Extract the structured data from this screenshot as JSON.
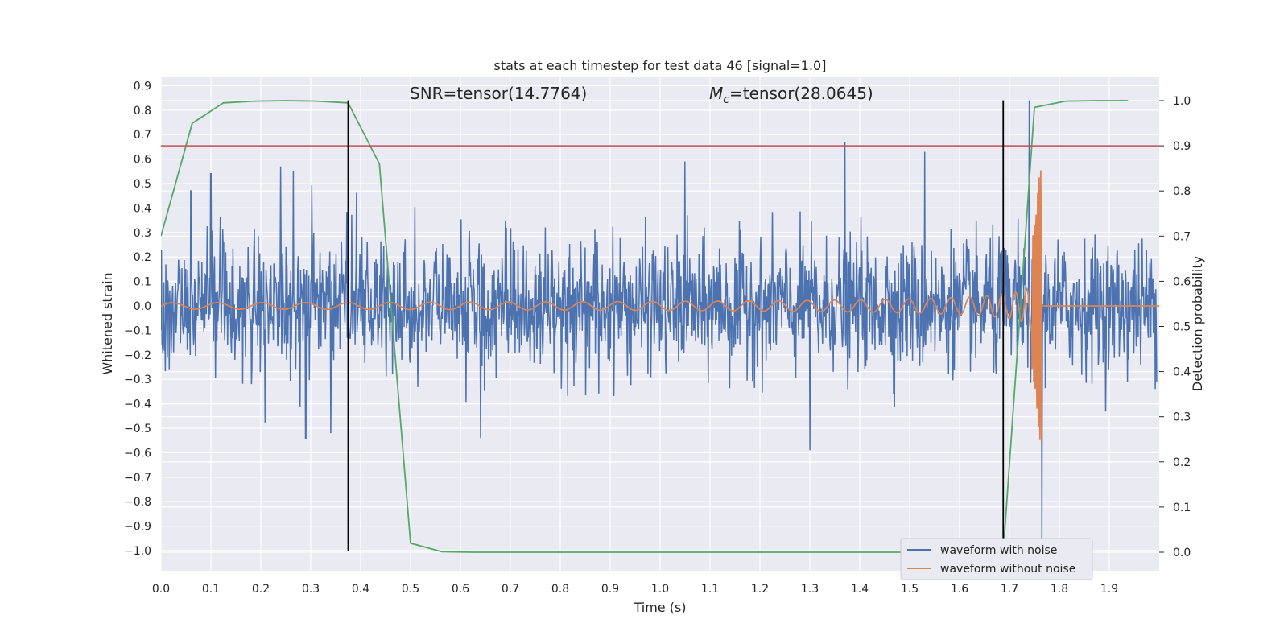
{
  "chart_data": {
    "type": "line",
    "title": "stats at each timestep for test data 46 [signal=1.0]",
    "xlabel": "Time (s)",
    "ylabel": "Whitened strain",
    "y2label": "Detection probability",
    "xlim": [
      0.0,
      2.0
    ],
    "ylim": [
      -1.09,
      0.92
    ],
    "y2lim": [
      -0.045,
      1.04
    ],
    "x_ticks": [
      "0.0",
      "0.1",
      "0.2",
      "0.3",
      "0.4",
      "0.5",
      "0.6",
      "0.7",
      "0.8",
      "0.9",
      "1.0",
      "1.1",
      "1.2",
      "1.3",
      "1.4",
      "1.5",
      "1.6",
      "1.7",
      "1.8",
      "1.9"
    ],
    "y_ticks": [
      "0.9",
      "0.8",
      "0.7",
      "0.6",
      "0.5",
      "0.4",
      "0.3",
      "0.2",
      "0.1",
      "0.0",
      "−0.1",
      "−0.2",
      "−0.3",
      "−0.4",
      "−0.5",
      "−0.6",
      "−0.7",
      "−0.8",
      "−0.9",
      "−1.0"
    ],
    "y2_ticks": [
      "1.0",
      "0.9",
      "0.8",
      "0.7",
      "0.6",
      "0.5",
      "0.4",
      "0.3",
      "0.2",
      "0.1",
      "0.0"
    ],
    "annotations": {
      "snr": "SNR=tensor(14.7764)",
      "mc_symbol": "M",
      "mc_sub": "c",
      "mc_value": "=tensor(28.0645)"
    },
    "threshold": {
      "y2": 0.9,
      "color": "#c44e52"
    },
    "vlines": {
      "x": [
        0.375,
        1.6875
      ],
      "ymin": -1.0,
      "ymax": 0.84,
      "color": "#000000"
    },
    "series": [
      {
        "name": "waveform with noise",
        "color": "#4c72b0",
        "axis": "left",
        "description": "dense whitened strain noise, amplitude roughly -0.6 to 0.67 with a spike near 1.74-1.77 s",
        "spikes": [
          [
            0.06,
            0.47
          ],
          [
            0.1,
            0.54
          ],
          [
            0.24,
            0.57
          ],
          [
            0.265,
            0.55
          ],
          [
            0.29,
            -0.54
          ],
          [
            0.34,
            -0.52
          ],
          [
            0.64,
            -0.54
          ],
          [
            1.05,
            0.59
          ],
          [
            1.3,
            -0.59
          ],
          [
            1.37,
            0.67
          ],
          [
            1.53,
            0.63
          ],
          [
            1.74,
            0.84
          ],
          [
            1.765,
            -1.0
          ]
        ]
      },
      {
        "name": "waveform without noise",
        "color": "#dd8452",
        "axis": "left",
        "description": "chirp signal, amplitude growing toward merger near 1.76 s, then flat at 0",
        "merger_time": 1.765,
        "peak": 0.63,
        "trough": -0.58
      },
      {
        "name": "",
        "color": "#55a868",
        "axis": "right",
        "x": [
          0.0,
          0.0625,
          0.125,
          0.1875,
          0.25,
          0.3125,
          0.375,
          0.4375,
          0.5,
          0.5625,
          0.625,
          0.6875,
          0.75,
          1.6875,
          1.75,
          1.8125,
          1.875,
          1.9375
        ],
        "values": [
          0.7,
          0.95,
          0.995,
          0.999,
          1.0,
          0.999,
          0.995,
          0.86,
          0.02,
          0.001,
          0.0,
          0.0,
          0.0,
          0.0,
          0.985,
          0.999,
          1.0,
          1.0
        ]
      }
    ],
    "legend": {
      "placement": "lower-right",
      "entries": [
        "waveform with noise",
        "waveform without noise"
      ]
    },
    "grid": true,
    "background": "#eaeaf2"
  }
}
